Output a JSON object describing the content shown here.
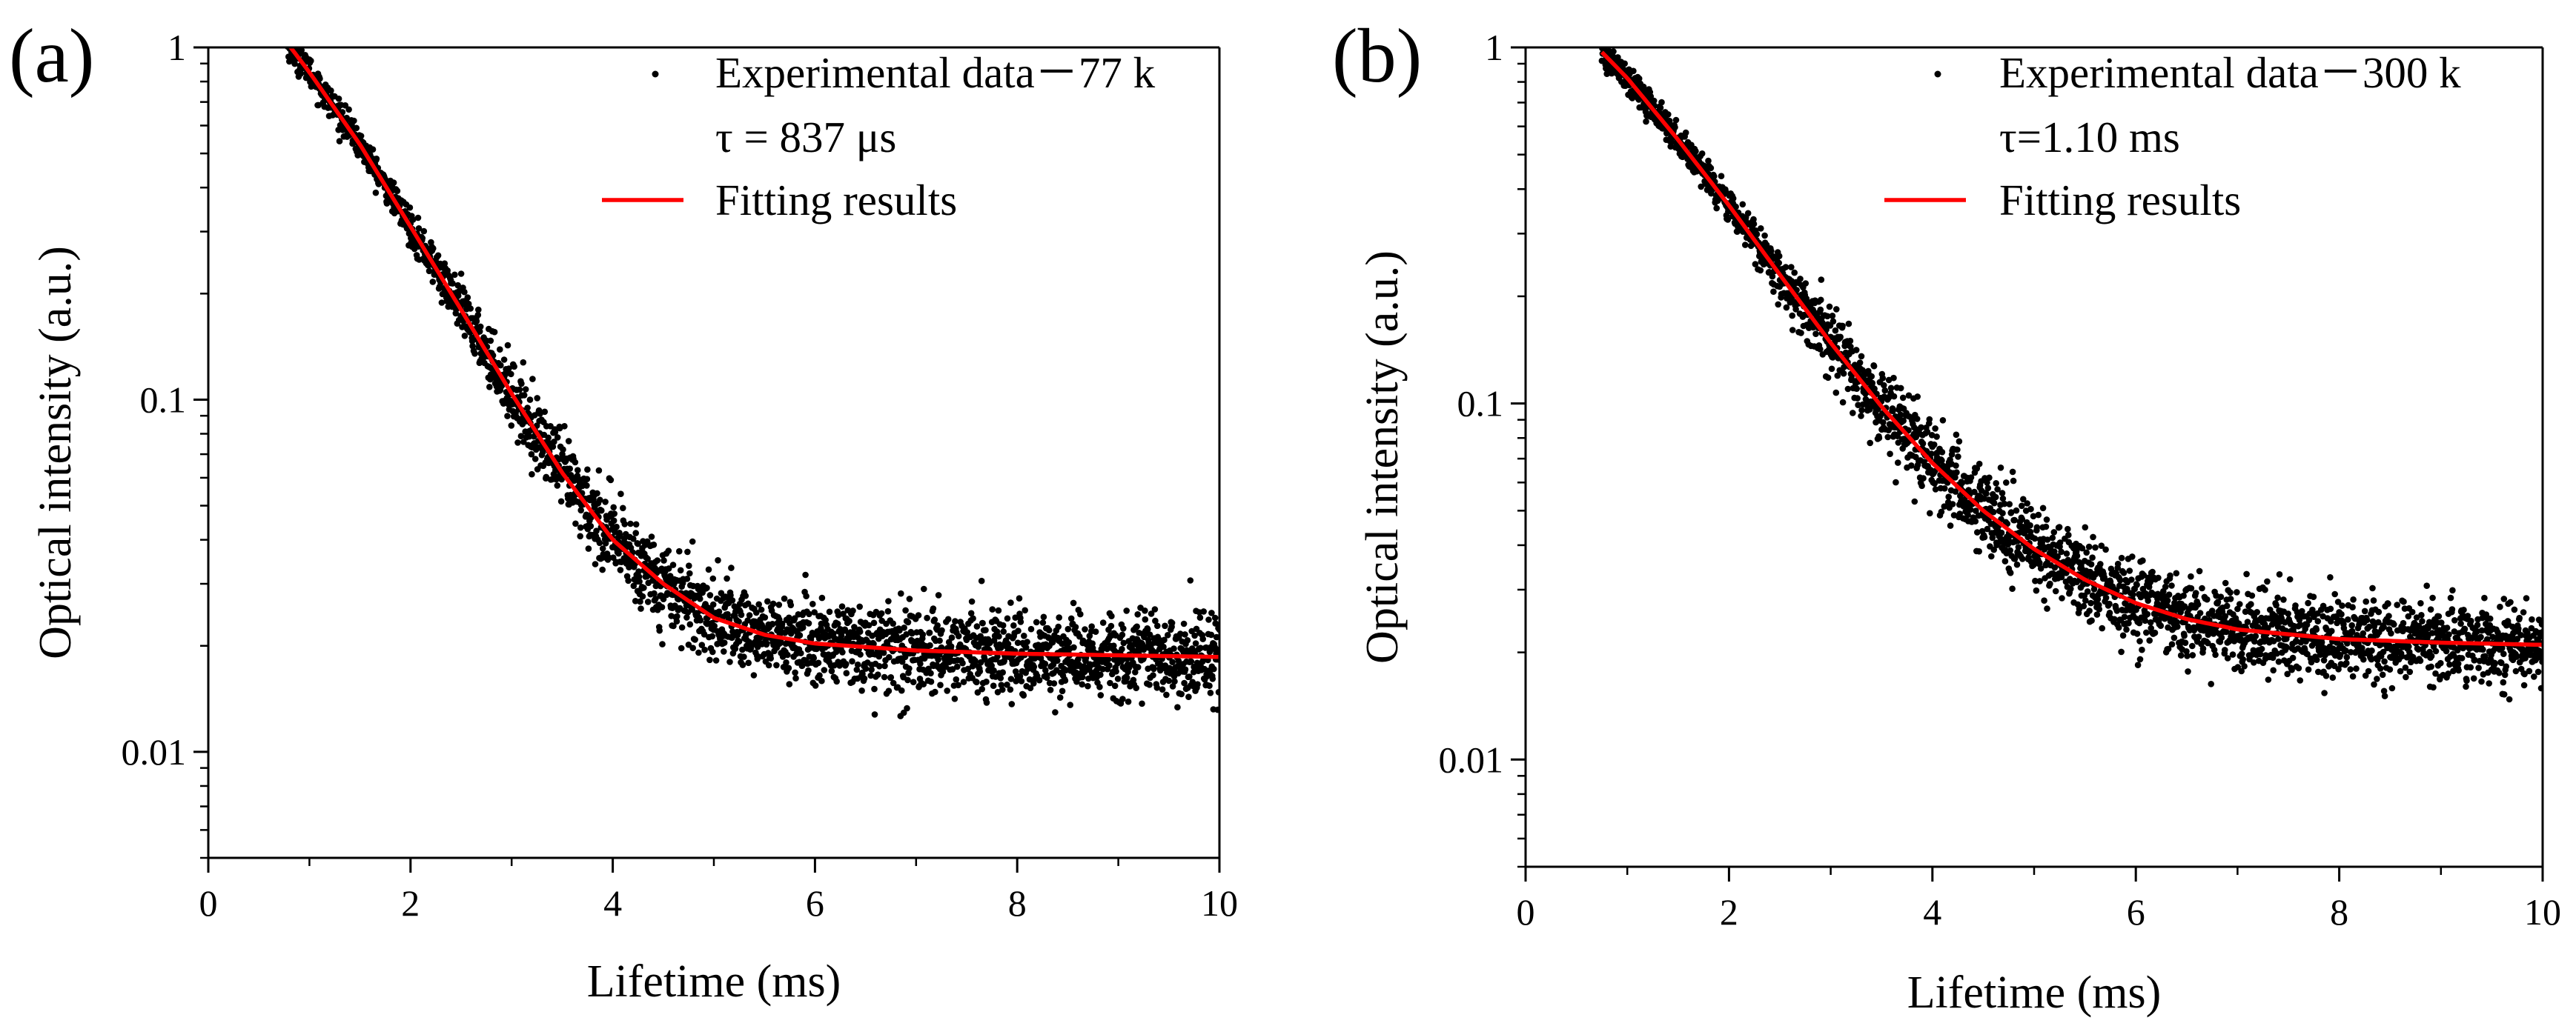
{
  "figure": {
    "panels": [
      "(a)",
      "(b)"
    ]
  },
  "chart_data": [
    {
      "type": "scatter",
      "panel_label": "(a)",
      "xlabel": "Lifetime (ms)",
      "ylabel": "Optical intensity (a.u.)",
      "xlim": [
        0,
        10
      ],
      "ylim": [
        0.005,
        1
      ],
      "yscale": "log",
      "x_ticks": [
        0,
        2,
        4,
        6,
        8,
        10
      ],
      "x_tick_labels": [
        "0",
        "2",
        "4",
        "6",
        "8",
        "10"
      ],
      "y_ticks": [
        1,
        0.1,
        0.01
      ],
      "y_tick_labels": [
        "1",
        "0.1",
        "0.01"
      ],
      "legend": {
        "position": "top-right",
        "entries": [
          {
            "marker": "dot",
            "label": "Experimental data－77 k"
          },
          {
            "marker": "none",
            "label": "τ = 837 μs"
          },
          {
            "marker": "line",
            "label": "Fitting results"
          }
        ]
      },
      "series": [
        {
          "name": "Experimental data－77 k",
          "kind": "points",
          "color": "#000000",
          "x_range": [
            0.78,
            10
          ],
          "spread_decades": 0.12,
          "model_points": [
            [
              0.78,
              1.03
            ],
            [
              1.0,
              0.85
            ],
            [
              1.5,
              0.53
            ],
            [
              2.0,
              0.31
            ],
            [
              2.5,
              0.18
            ],
            [
              3.0,
              0.104
            ],
            [
              3.5,
              0.062
            ],
            [
              4.0,
              0.04
            ],
            [
              4.5,
              0.03
            ],
            [
              5.0,
              0.024
            ],
            [
              5.5,
              0.0215
            ],
            [
              6.0,
              0.0203
            ],
            [
              7.0,
              0.0194
            ],
            [
              8.0,
              0.019
            ],
            [
              9.0,
              0.0188
            ],
            [
              10.0,
              0.0186
            ]
          ]
        },
        {
          "name": "Fitting results",
          "kind": "line",
          "color": "#ff0000",
          "points": [
            [
              0.78,
              1.03
            ],
            [
              1.0,
              0.85
            ],
            [
              1.5,
              0.53
            ],
            [
              2.0,
              0.31
            ],
            [
              2.5,
              0.18
            ],
            [
              3.0,
              0.104
            ],
            [
              3.5,
              0.062
            ],
            [
              4.0,
              0.04
            ],
            [
              4.5,
              0.03
            ],
            [
              5.0,
              0.024
            ],
            [
              5.5,
              0.0215
            ],
            [
              6.0,
              0.0203
            ],
            [
              7.0,
              0.0194
            ],
            [
              8.0,
              0.019
            ],
            [
              9.0,
              0.0188
            ],
            [
              10.0,
              0.0186
            ]
          ]
        }
      ]
    },
    {
      "type": "scatter",
      "panel_label": "(b)",
      "xlabel": "Lifetime (ms)",
      "ylabel": "Optical intensity (a.u.)",
      "xlim": [
        0,
        10
      ],
      "ylim": [
        0.005,
        1
      ],
      "yscale": "log",
      "x_ticks": [
        0,
        2,
        4,
        6,
        8,
        10
      ],
      "x_tick_labels": [
        "0",
        "2",
        "4",
        "6",
        "8",
        "10"
      ],
      "y_ticks": [
        1,
        0.1,
        0.01
      ],
      "y_tick_labels": [
        "1",
        "0.1",
        "0.01"
      ],
      "legend": {
        "position": "top-right",
        "entries": [
          {
            "marker": "dot",
            "label": "Experimental data－300 k"
          },
          {
            "marker": "none",
            "label": "τ=1.10 ms"
          },
          {
            "marker": "line",
            "label": "Fitting results"
          }
        ]
      },
      "series": [
        {
          "name": "Experimental data－300 k",
          "kind": "points",
          "color": "#000000",
          "x_range": [
            0.75,
            10
          ],
          "spread_decades": 0.12,
          "model_points": [
            [
              0.75,
              0.97
            ],
            [
              1.0,
              0.82
            ],
            [
              1.5,
              0.55
            ],
            [
              2.0,
              0.36
            ],
            [
              2.5,
              0.23
            ],
            [
              3.0,
              0.148
            ],
            [
              3.5,
              0.098
            ],
            [
              4.0,
              0.068
            ],
            [
              4.5,
              0.05
            ],
            [
              5.0,
              0.039
            ],
            [
              5.5,
              0.032
            ],
            [
              6.0,
              0.0275
            ],
            [
              6.5,
              0.0248
            ],
            [
              7.0,
              0.0232
            ],
            [
              8.0,
              0.0218
            ],
            [
              9.0,
              0.0213
            ],
            [
              10.0,
              0.021
            ]
          ]
        },
        {
          "name": "Fitting results",
          "kind": "line",
          "color": "#ff0000",
          "points": [
            [
              0.75,
              0.97
            ],
            [
              1.0,
              0.82
            ],
            [
              1.5,
              0.55
            ],
            [
              2.0,
              0.36
            ],
            [
              2.5,
              0.23
            ],
            [
              3.0,
              0.148
            ],
            [
              3.5,
              0.098
            ],
            [
              4.0,
              0.068
            ],
            [
              4.5,
              0.05
            ],
            [
              5.0,
              0.039
            ],
            [
              5.5,
              0.032
            ],
            [
              6.0,
              0.0275
            ],
            [
              6.5,
              0.0248
            ],
            [
              7.0,
              0.0232
            ],
            [
              8.0,
              0.0218
            ],
            [
              9.0,
              0.0213
            ],
            [
              10.0,
              0.021
            ]
          ]
        }
      ]
    }
  ]
}
